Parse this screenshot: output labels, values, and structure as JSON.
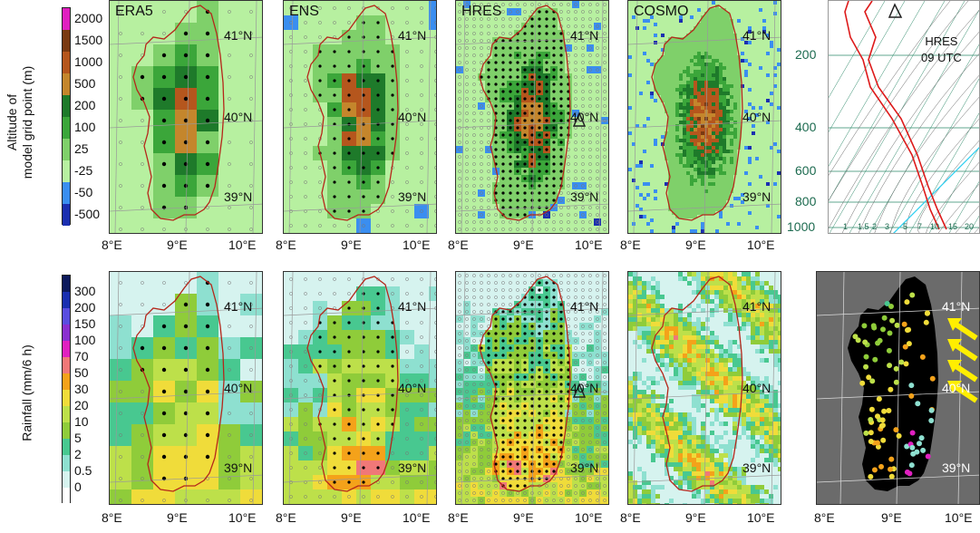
{
  "altitude_colorbar": {
    "label_line1": "Altitude of",
    "label_line2": "model grid point (m)",
    "ticks": [
      "2000",
      "1500",
      "1000",
      "500",
      "200",
      "100",
      "25",
      "-25",
      "-50",
      "-500"
    ],
    "colors": [
      "#e020c0",
      "#7a3a12",
      "#b5561d",
      "#c4862c",
      "#1e7a2a",
      "#3ba63a",
      "#7fd06a",
      "#b7f0a0",
      "#3a8ef0",
      "#1b2fb0"
    ]
  },
  "rainfall_colorbar": {
    "label": "Rainfall (mm/6 h)",
    "ticks": [
      "300",
      "200",
      "150",
      "100",
      "70",
      "50",
      "30",
      "20",
      "10",
      "5",
      "2",
      "0.5",
      "0"
    ],
    "colors": [
      "#0d1a5c",
      "#1a2fb0",
      "#5a4de0",
      "#8a2fd0",
      "#e020c0",
      "#f07878",
      "#f4a21a",
      "#f0dc3a",
      "#bde04a",
      "#8fcc3a",
      "#48c890",
      "#8ee0d0",
      "#d6f3ef",
      "#ffffff"
    ]
  },
  "panels": {
    "top": [
      {
        "title": "ERA5",
        "lat41": "41°N",
        "lat40": "40°N",
        "lat39": "39°N"
      },
      {
        "title": "ENS",
        "lat41": "41°N",
        "lat40": "40°N",
        "lat39": "39°N"
      },
      {
        "title": "HRES",
        "lat41": "41°N",
        "lat40": "40°N",
        "lat39": "39°N"
      },
      {
        "title": "COSMO",
        "lat41": "41°N",
        "lat40": "40°N",
        "lat39": "39°N"
      }
    ],
    "bottom": [
      {
        "lat41": "41°N",
        "lat40": "40°N",
        "lat39": "39°N"
      },
      {
        "lat41": "41°N",
        "lat40": "40°N",
        "lat39": "39°N"
      },
      {
        "lat41": "41°N",
        "lat40": "40°N",
        "lat39": "39°N"
      },
      {
        "lat41": "41°N",
        "lat40": "40°N",
        "lat39": "39°N"
      },
      {
        "lat41": "41°N",
        "lat40": "40°N",
        "lat39": "39°N"
      }
    ]
  },
  "x_ticks": [
    "8°E",
    "9°E",
    "10°E"
  ],
  "skewt": {
    "label_line1": "HRES",
    "label_line2": "09 UTC",
    "pressure_ticks": [
      "200",
      "400",
      "600",
      "800",
      "1000"
    ],
    "mixing_ratio_ticks": [
      "1",
      "1.5",
      "2",
      "3",
      "5",
      "7",
      "10",
      "15",
      "20"
    ]
  }
}
